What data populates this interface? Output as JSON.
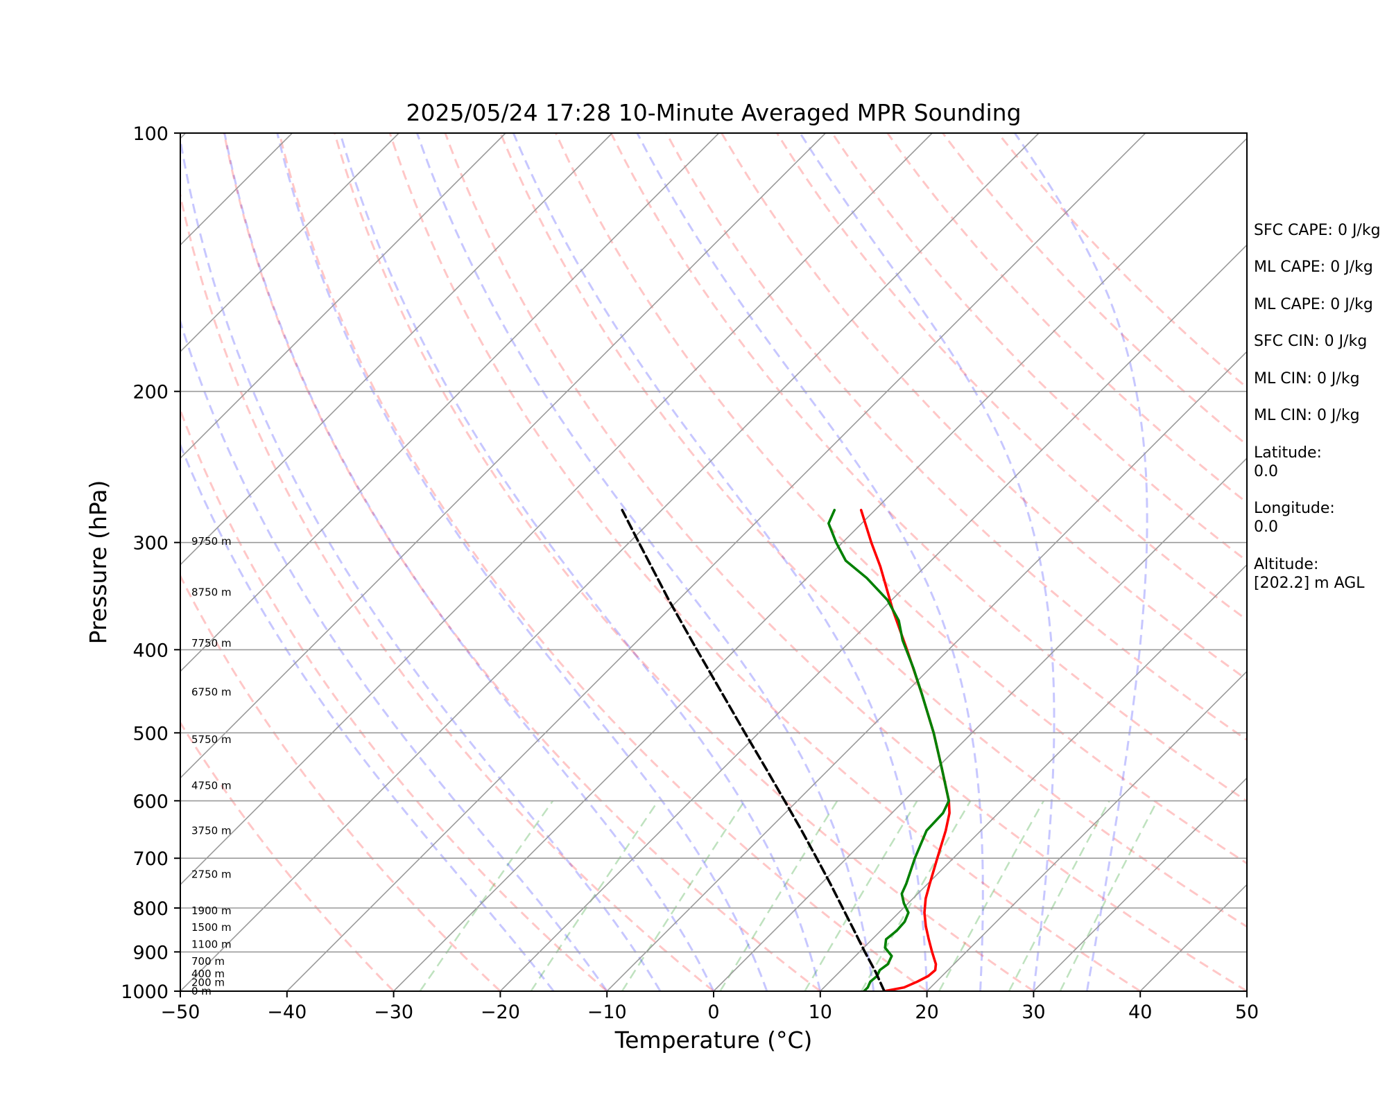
{
  "chart_data": {
    "type": "skew-t",
    "title": "2025/05/24 17:28 10-Minute Averaged MPR Sounding",
    "xlabel": "Temperature (°C)",
    "ylabel": "Pressure (hPa)",
    "xlim": [
      -50,
      50
    ],
    "ylim": [
      1000,
      100
    ],
    "y_scale": "log",
    "x_ticks": [
      -50,
      -40,
      -30,
      -20,
      -10,
      0,
      10,
      20,
      30,
      40,
      50
    ],
    "x_tick_labels": [
      "−50",
      "−40",
      "−30",
      "−20",
      "−10",
      "0",
      "10",
      "20",
      "30",
      "40",
      "50"
    ],
    "y_ticks": [
      100,
      200,
      300,
      400,
      500,
      600,
      700,
      800,
      900,
      1000
    ],
    "y_tick_labels": [
      "100",
      "200",
      "300",
      "400",
      "500",
      "600",
      "700",
      "800",
      "900",
      "1000"
    ],
    "isotherm_spacing": 10,
    "grid": true,
    "background_lines": {
      "dry_adiabat_theta_c": [
        -30,
        -20,
        -10,
        0,
        10,
        20,
        30,
        40,
        50,
        60,
        70,
        80,
        90,
        100,
        110,
        120,
        130,
        140,
        150
      ],
      "moist_adiabat_start_c": [
        -15,
        -10,
        -5,
        0,
        5,
        10,
        15,
        20,
        25,
        30,
        35
      ],
      "mixing_ratio_gkg": [
        0.4,
        1,
        2,
        4,
        7,
        10,
        16,
        24,
        32
      ]
    },
    "series": [
      {
        "color": "#ff0000",
        "style": "solid",
        "points": [
          {
            "p": 1000,
            "t": 16.0
          },
          {
            "p": 990,
            "t": 17.5
          },
          {
            "p": 975,
            "t": 18.2
          },
          {
            "p": 960,
            "t": 18.7
          },
          {
            "p": 945,
            "t": 18.8
          },
          {
            "p": 930,
            "t": 18.3
          },
          {
            "p": 900,
            "t": 16.8
          },
          {
            "p": 870,
            "t": 15.3
          },
          {
            "p": 840,
            "t": 13.8
          },
          {
            "p": 810,
            "t": 12.4
          },
          {
            "p": 780,
            "t": 11.2
          },
          {
            "p": 750,
            "t": 10.2
          },
          {
            "p": 700,
            "t": 8.5
          },
          {
            "p": 650,
            "t": 6.7
          },
          {
            "p": 620,
            "t": 5.4
          },
          {
            "p": 600,
            "t": 4.2
          },
          {
            "p": 550,
            "t": 0.5
          },
          {
            "p": 500,
            "t": -3.6
          },
          {
            "p": 450,
            "t": -8.4
          },
          {
            "p": 400,
            "t": -13.9
          },
          {
            "p": 360,
            "t": -18.9
          },
          {
            "p": 320,
            "t": -24.2
          },
          {
            "p": 300,
            "t": -27.3
          },
          {
            "p": 275,
            "t": -31.3
          }
        ]
      },
      {
        "color": "#008000",
        "style": "solid",
        "points": [
          {
            "p": 1000,
            "t": 14.1
          },
          {
            "p": 990,
            "t": 14.1
          },
          {
            "p": 975,
            "t": 13.8
          },
          {
            "p": 960,
            "t": 13.9
          },
          {
            "p": 945,
            "t": 13.6
          },
          {
            "p": 930,
            "t": 13.8
          },
          {
            "p": 910,
            "t": 13.4
          },
          {
            "p": 890,
            "t": 12.0
          },
          {
            "p": 870,
            "t": 11.3
          },
          {
            "p": 850,
            "t": 11.5
          },
          {
            "p": 830,
            "t": 11.4
          },
          {
            "p": 810,
            "t": 10.9
          },
          {
            "p": 790,
            "t": 9.6
          },
          {
            "p": 770,
            "t": 8.5
          },
          {
            "p": 750,
            "t": 8.0
          },
          {
            "p": 700,
            "t": 6.4
          },
          {
            "p": 650,
            "t": 4.9
          },
          {
            "p": 620,
            "t": 4.8
          },
          {
            "p": 600,
            "t": 4.2
          },
          {
            "p": 550,
            "t": 0.5
          },
          {
            "p": 500,
            "t": -3.6
          },
          {
            "p": 450,
            "t": -8.4
          },
          {
            "p": 420,
            "t": -11.6
          },
          {
            "p": 390,
            "t": -15.2
          },
          {
            "p": 370,
            "t": -17.4
          },
          {
            "p": 350,
            "t": -20.4
          },
          {
            "p": 330,
            "t": -24.4
          },
          {
            "p": 315,
            "t": -28.0
          },
          {
            "p": 300,
            "t": -30.6
          },
          {
            "p": 285,
            "t": -33.1
          },
          {
            "p": 275,
            "t": -33.8
          }
        ]
      },
      {
        "color": "#000000",
        "style": "dashed",
        "points": [
          {
            "p": 1000,
            "t": 16.0
          },
          {
            "p": 950,
            "t": 13.4
          },
          {
            "p": 900,
            "t": 10.5
          },
          {
            "p": 850,
            "t": 7.5
          },
          {
            "p": 800,
            "t": 4.3
          },
          {
            "p": 750,
            "t": 0.9
          },
          {
            "p": 700,
            "t": -2.8
          },
          {
            "p": 650,
            "t": -6.8
          },
          {
            "p": 600,
            "t": -11.2
          },
          {
            "p": 550,
            "t": -16.0
          },
          {
            "p": 500,
            "t": -21.3
          },
          {
            "p": 450,
            "t": -27.1
          },
          {
            "p": 400,
            "t": -33.6
          },
          {
            "p": 350,
            "t": -40.9
          },
          {
            "p": 300,
            "t": -49.1
          },
          {
            "p": 275,
            "t": -53.7
          }
        ]
      }
    ],
    "height_labels": [
      {
        "text": "0 m",
        "p": 1000
      },
      {
        "text": "200 m",
        "p": 977
      },
      {
        "text": "400 m",
        "p": 955
      },
      {
        "text": "700 m",
        "p": 923
      },
      {
        "text": "1100 m",
        "p": 882
      },
      {
        "text": "1500 m",
        "p": 843
      },
      {
        "text": "1900 m",
        "p": 806
      },
      {
        "text": "2750 m",
        "p": 731
      },
      {
        "text": "3750 m",
        "p": 650
      },
      {
        "text": "4750 m",
        "p": 576
      },
      {
        "text": "5750 m",
        "p": 509
      },
      {
        "text": "6750 m",
        "p": 448
      },
      {
        "text": "7750 m",
        "p": 393
      },
      {
        "text": "8750 m",
        "p": 343
      },
      {
        "text": "9750 m",
        "p": 299
      }
    ]
  },
  "side_panel": [
    "SFC CAPE: 0 J/kg",
    "ML CAPE: 0 J/kg",
    "ML CAPE: 0 J/kg",
    "SFC CIN: 0 J/kg",
    "ML CIN: 0 J/kg",
    "ML CIN: 0 J/kg",
    "Latitude:",
    "0.0",
    "Longitude:",
    "0.0",
    "Altitude:",
    "[202.2] m AGL"
  ]
}
